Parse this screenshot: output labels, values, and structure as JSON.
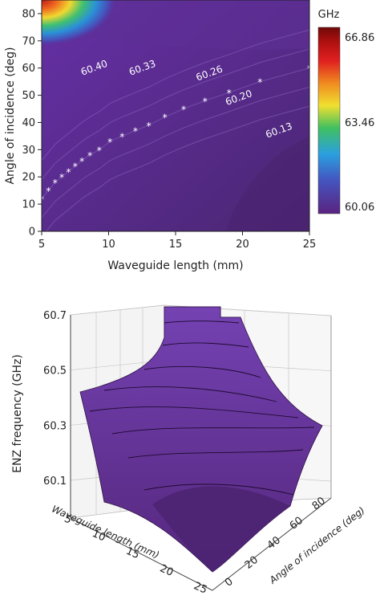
{
  "chart_data": [
    {
      "type": "heatmap",
      "xlabel": "Waveguide length (mm)",
      "ylabel": "Angle of incidence (deg)",
      "xlim": [
        5,
        25
      ],
      "ylim": [
        0,
        85
      ],
      "xticks": [
        "5",
        "10",
        "15",
        "20",
        "25"
      ],
      "yticks": [
        "0",
        "10",
        "20",
        "30",
        "40",
        "50",
        "60",
        "70",
        "80"
      ],
      "colorbar": {
        "unit": "GHz",
        "min": 60.06,
        "max": 66.86,
        "tick_labels": [
          "66.86",
          "63.46",
          "60.06"
        ],
        "colors": [
          "#5a2380",
          "#4455c0",
          "#2aa0e0",
          "#40c060",
          "#f0e030",
          "#f08a20",
          "#e02020",
          "#b01010",
          "#700808"
        ]
      },
      "contour_labels": [
        {
          "label": "60.40",
          "x": 9.0,
          "y": 59
        },
        {
          "label": "60.33",
          "x": 12.6,
          "y": 59
        },
        {
          "label": "60.26",
          "x": 17.6,
          "y": 57
        },
        {
          "label": "60.20",
          "x": 19.8,
          "y": 48
        },
        {
          "label": "60.13",
          "x": 22.8,
          "y": 36
        }
      ],
      "marker_series": {
        "marker": "*",
        "x": [
          5.0,
          5.5,
          6.0,
          6.5,
          7.0,
          7.5,
          8.0,
          8.6,
          9.3,
          10.1,
          11.0,
          12.0,
          13.0,
          14.2,
          15.6,
          17.2,
          19.0,
          21.3,
          25.0
        ],
        "y": [
          12,
          15,
          18,
          20,
          22,
          24,
          26,
          28,
          30,
          33,
          35,
          37,
          39,
          42,
          45,
          48,
          51,
          55,
          60
        ]
      }
    },
    {
      "type": "surface3d",
      "zlabel": "ENZ frequency (GHz)",
      "xlabel": "Waveguide length (mm)",
      "ylabel": "Angle of incidence (deg)",
      "zticks": [
        "60.1",
        "60.3",
        "60.5",
        "60.7"
      ],
      "xticks": [
        "5",
        "10",
        "15",
        "20",
        "25"
      ],
      "yticks": [
        "0",
        "20",
        "40",
        "60",
        "80"
      ],
      "surface_color": "#6a2a9e"
    }
  ]
}
